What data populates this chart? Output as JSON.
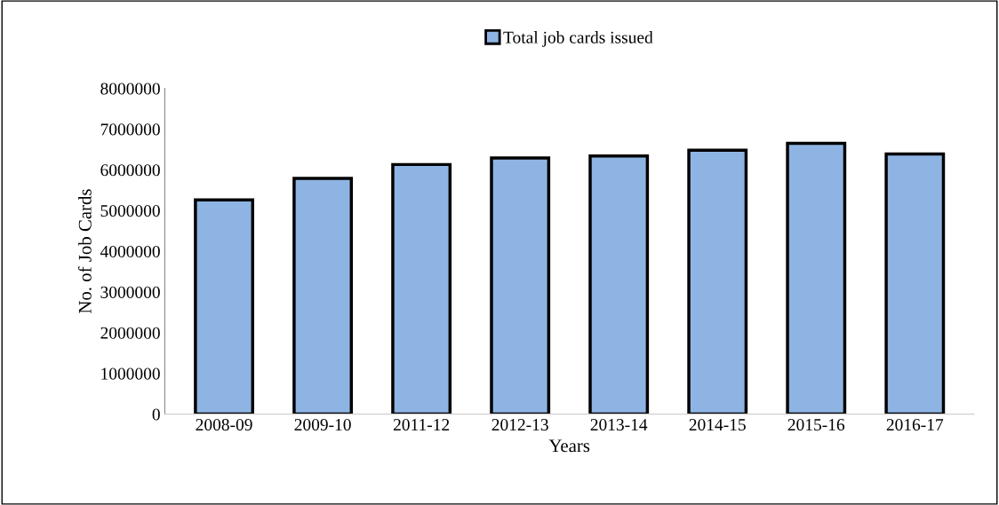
{
  "chart_data": {
    "type": "bar",
    "xlabel": "Years",
    "ylabel": "No. of Job Cards",
    "categories": [
      "2008-09",
      "2009-10",
      "2011-12",
      "2012-13",
      "2013-14",
      "2014-15",
      "2015-16",
      "2016-17"
    ],
    "series": [
      {
        "name": "Total job cards issued",
        "color": "#8eb4e3",
        "values": [
          5260000,
          5790000,
          6130000,
          6290000,
          6340000,
          6480000,
          6650000,
          6390000
        ]
      }
    ],
    "ylim": [
      0,
      8000000
    ],
    "yticks": [
      0,
      1000000,
      2000000,
      3000000,
      4000000,
      5000000,
      6000000,
      7000000,
      8000000
    ],
    "grid": false,
    "legend": "top"
  }
}
